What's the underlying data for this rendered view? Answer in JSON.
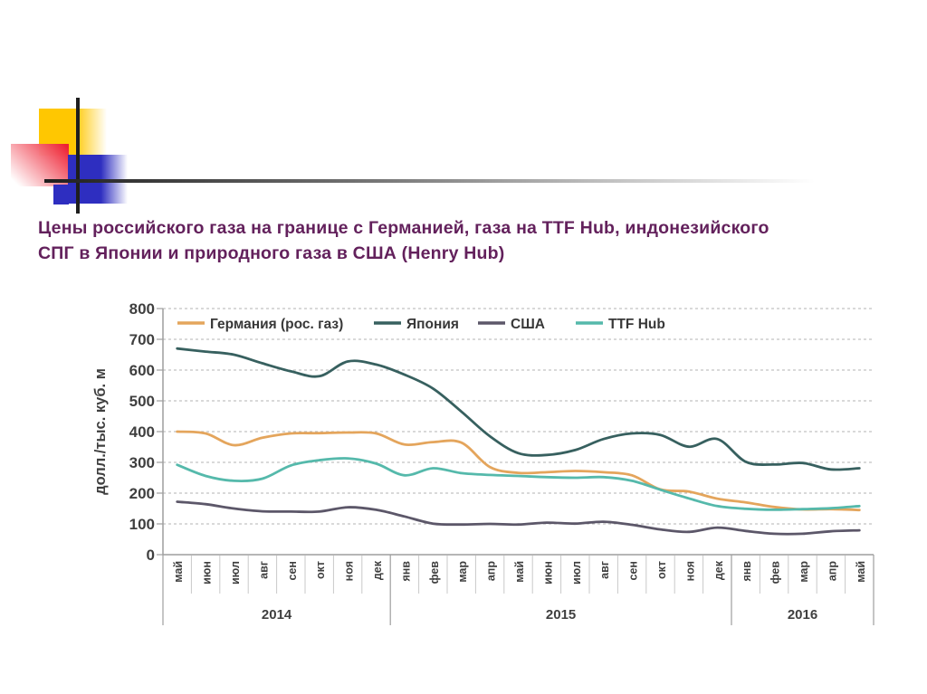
{
  "slide": {
    "title": {
      "line1": "Цены российского газа на границе с Германией, газа на TTF Hub, индонезийского",
      "line2": "СПГ в Японии и природного газа в США (Henry Hub)",
      "color": "#63215c"
    },
    "decoration": {
      "yellow": "#ffc701",
      "red": "#ee2133",
      "blue": "#2e2ec0",
      "line_color": "#1e1e1e"
    }
  },
  "chart_data": {
    "type": "line",
    "title": "",
    "xlabel": "",
    "ylabel": "долл./тыс. куб. м",
    "ylim": [
      0,
      800
    ],
    "yticks": [
      0,
      100,
      200,
      300,
      400,
      500,
      600,
      700,
      800
    ],
    "grid": "horizontal-dashed",
    "legend_position": "top-inside-row",
    "categories": [
      "май",
      "июн",
      "июл",
      "авг",
      "сен",
      "окт",
      "ноя",
      "дек",
      "янв",
      "фев",
      "мар",
      "апр",
      "май",
      "июн",
      "июл",
      "авг",
      "сен",
      "окт",
      "ноя",
      "дек",
      "янв",
      "фев",
      "мар",
      "апр",
      "май"
    ],
    "year_groups": [
      {
        "label": "2014",
        "start": 0,
        "count": 8
      },
      {
        "label": "2015",
        "start": 8,
        "count": 12
      },
      {
        "label": "2016",
        "start": 20,
        "count": 5
      }
    ],
    "series": [
      {
        "name": "Германия (рос. газ)",
        "color": "#e4a55c",
        "values": [
          400,
          394,
          356,
          380,
          394,
          395,
          397,
          394,
          358,
          366,
          364,
          285,
          266,
          268,
          272,
          268,
          258,
          212,
          205,
          182,
          170,
          155,
          147,
          148,
          145
        ]
      },
      {
        "name": "Япония",
        "color": "#37605f",
        "values": [
          670,
          660,
          650,
          622,
          596,
          580,
          628,
          618,
          585,
          540,
          465,
          385,
          330,
          324,
          340,
          376,
          394,
          389,
          351,
          376,
          302,
          293,
          298,
          277,
          281
        ]
      },
      {
        "name": "США",
        "color": "#5c5769",
        "values": [
          172,
          164,
          150,
          141,
          140,
          140,
          154,
          146,
          124,
          101,
          98,
          100,
          98,
          104,
          101,
          107,
          97,
          82,
          74,
          88,
          77,
          68,
          68,
          76,
          79
        ]
      },
      {
        "name": "TTF Hub",
        "color": "#55b9ab",
        "values": [
          292,
          256,
          240,
          247,
          290,
          307,
          313,
          296,
          258,
          281,
          265,
          259,
          256,
          252,
          250,
          252,
          240,
          211,
          183,
          158,
          149,
          146,
          148,
          151,
          158
        ]
      }
    ],
    "axis_text_color": "#3f3f3f",
    "legend_text_color": "#383838",
    "grid_color": "#b3b3b3",
    "axis_line_color": "#9e9e9e",
    "month_sep_color": "#c9c9c9"
  }
}
